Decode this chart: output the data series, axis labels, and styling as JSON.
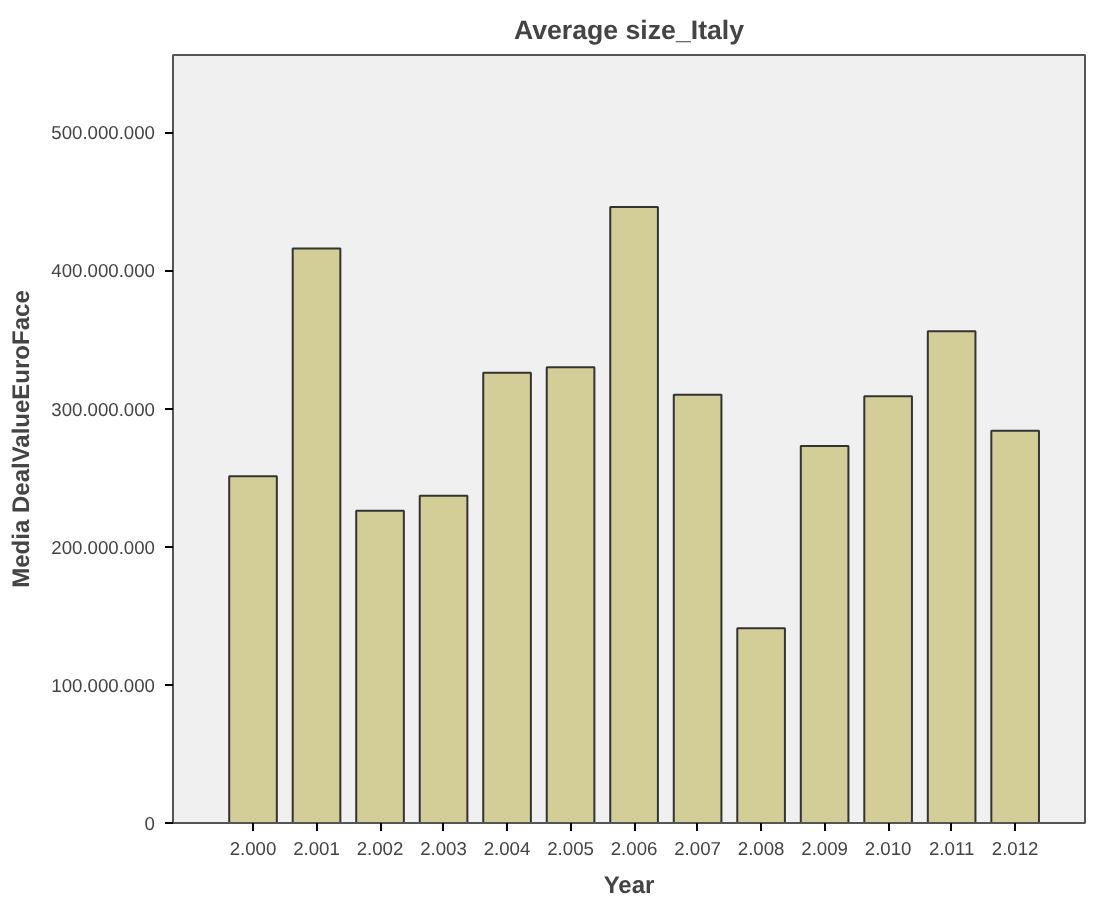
{
  "chart_data": {
    "type": "bar",
    "title": "Average size_Italy",
    "xlabel": "Year",
    "ylabel": "Media DealValueEuroFace",
    "categories": [
      "2.000",
      "2.001",
      "2.002",
      "2.003",
      "2.004",
      "2.005",
      "2.006",
      "2.007",
      "2.008",
      "2.009",
      "2.010",
      "2.011",
      "2.012"
    ],
    "values": [
      251000000,
      416000000,
      226000000,
      237000000,
      326000000,
      330000000,
      446000000,
      310000000,
      141000000,
      273000000,
      309000000,
      356000000,
      284000000
    ],
    "color": "#d3ce98",
    "ylim": [
      0,
      556000000
    ],
    "yticks": [
      0,
      {
        "value": 100000000,
        "label": "100.000.000"
      },
      {
        "value": 200000000,
        "label": "200.000.000"
      },
      {
        "value": 300000000,
        "label": "300.000.000"
      },
      {
        "value": 400000000,
        "label": "400.000.000"
      },
      {
        "value": 500000000,
        "label": "500.000.000"
      }
    ],
    "grid": false
  }
}
